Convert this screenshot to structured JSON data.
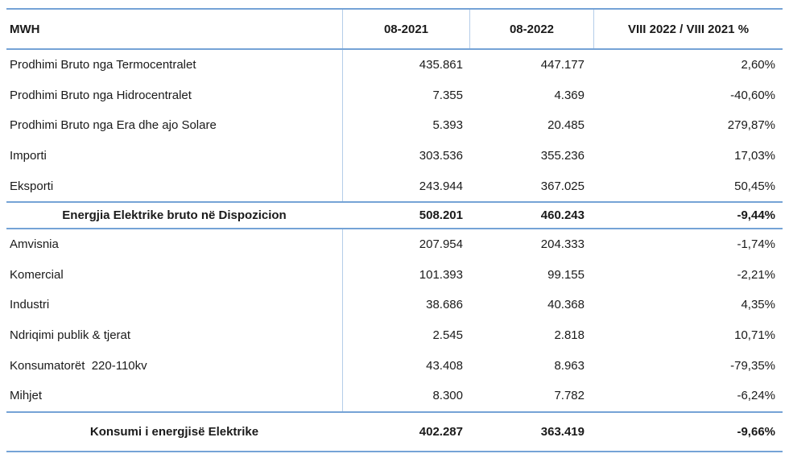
{
  "table": {
    "header": {
      "col0": "MWH",
      "col1": "08-2021",
      "col2": "08-2022",
      "col3": "VIII 2022 / VIII 2021 %"
    },
    "rows": [
      {
        "label": "Prodhimi Bruto nga Termocentralet",
        "y2021": "435.861",
        "y2022": "447.177",
        "pct": "2,60%"
      },
      {
        "label": "Prodhimi Bruto nga Hidrocentralet",
        "y2021": "7.355",
        "y2022": "4.369",
        "pct": "-40,60%"
      },
      {
        "label": "Prodhimi Bruto nga Era dhe ajo Solare",
        "y2021": "5.393",
        "y2022": "20.485",
        "pct": "279,87%"
      },
      {
        "label": "Importi",
        "y2021": "303.536",
        "y2022": "355.236",
        "pct": "17,03%"
      },
      {
        "label": "Eksporti",
        "y2021": "243.944",
        "y2022": "367.025",
        "pct": "50,45%"
      },
      {
        "label": "Energjia Elektrike bruto në Dispozicion",
        "y2021": "508.201",
        "y2022": "460.243",
        "pct": "-9,44%",
        "is_total": true
      },
      {
        "label": "Amvisnia",
        "y2021": "207.954",
        "y2022": "204.333",
        "pct": "-1,74%"
      },
      {
        "label": "Komercial",
        "y2021": "101.393",
        "y2022": "99.155",
        "pct": "-2,21%"
      },
      {
        "label": "Industri",
        "y2021": "38.686",
        "y2022": "40.368",
        "pct": "4,35%"
      },
      {
        "label": "Ndriqimi publik & tjerat",
        "y2021": "2.545",
        "y2022": "2.818",
        "pct": "10,71%"
      },
      {
        "label": "Konsumatorët  220-110kv",
        "y2021": "43.408",
        "y2022": "8.963",
        "pct": "-79,35%"
      },
      {
        "label": "Mihjet",
        "y2021": "8.300",
        "y2022": "7.782",
        "pct": "-6,24%"
      },
      {
        "label": "Konsumi i energjisë Elektrike",
        "y2021": "402.287",
        "y2022": "363.419",
        "pct": "-9,66%",
        "is_total": true
      }
    ],
    "colors": {
      "rule_strong": "#75a3d6",
      "rule_light": "#b4cde9",
      "text": "#1a1a1a",
      "background": "#ffffff"
    }
  }
}
